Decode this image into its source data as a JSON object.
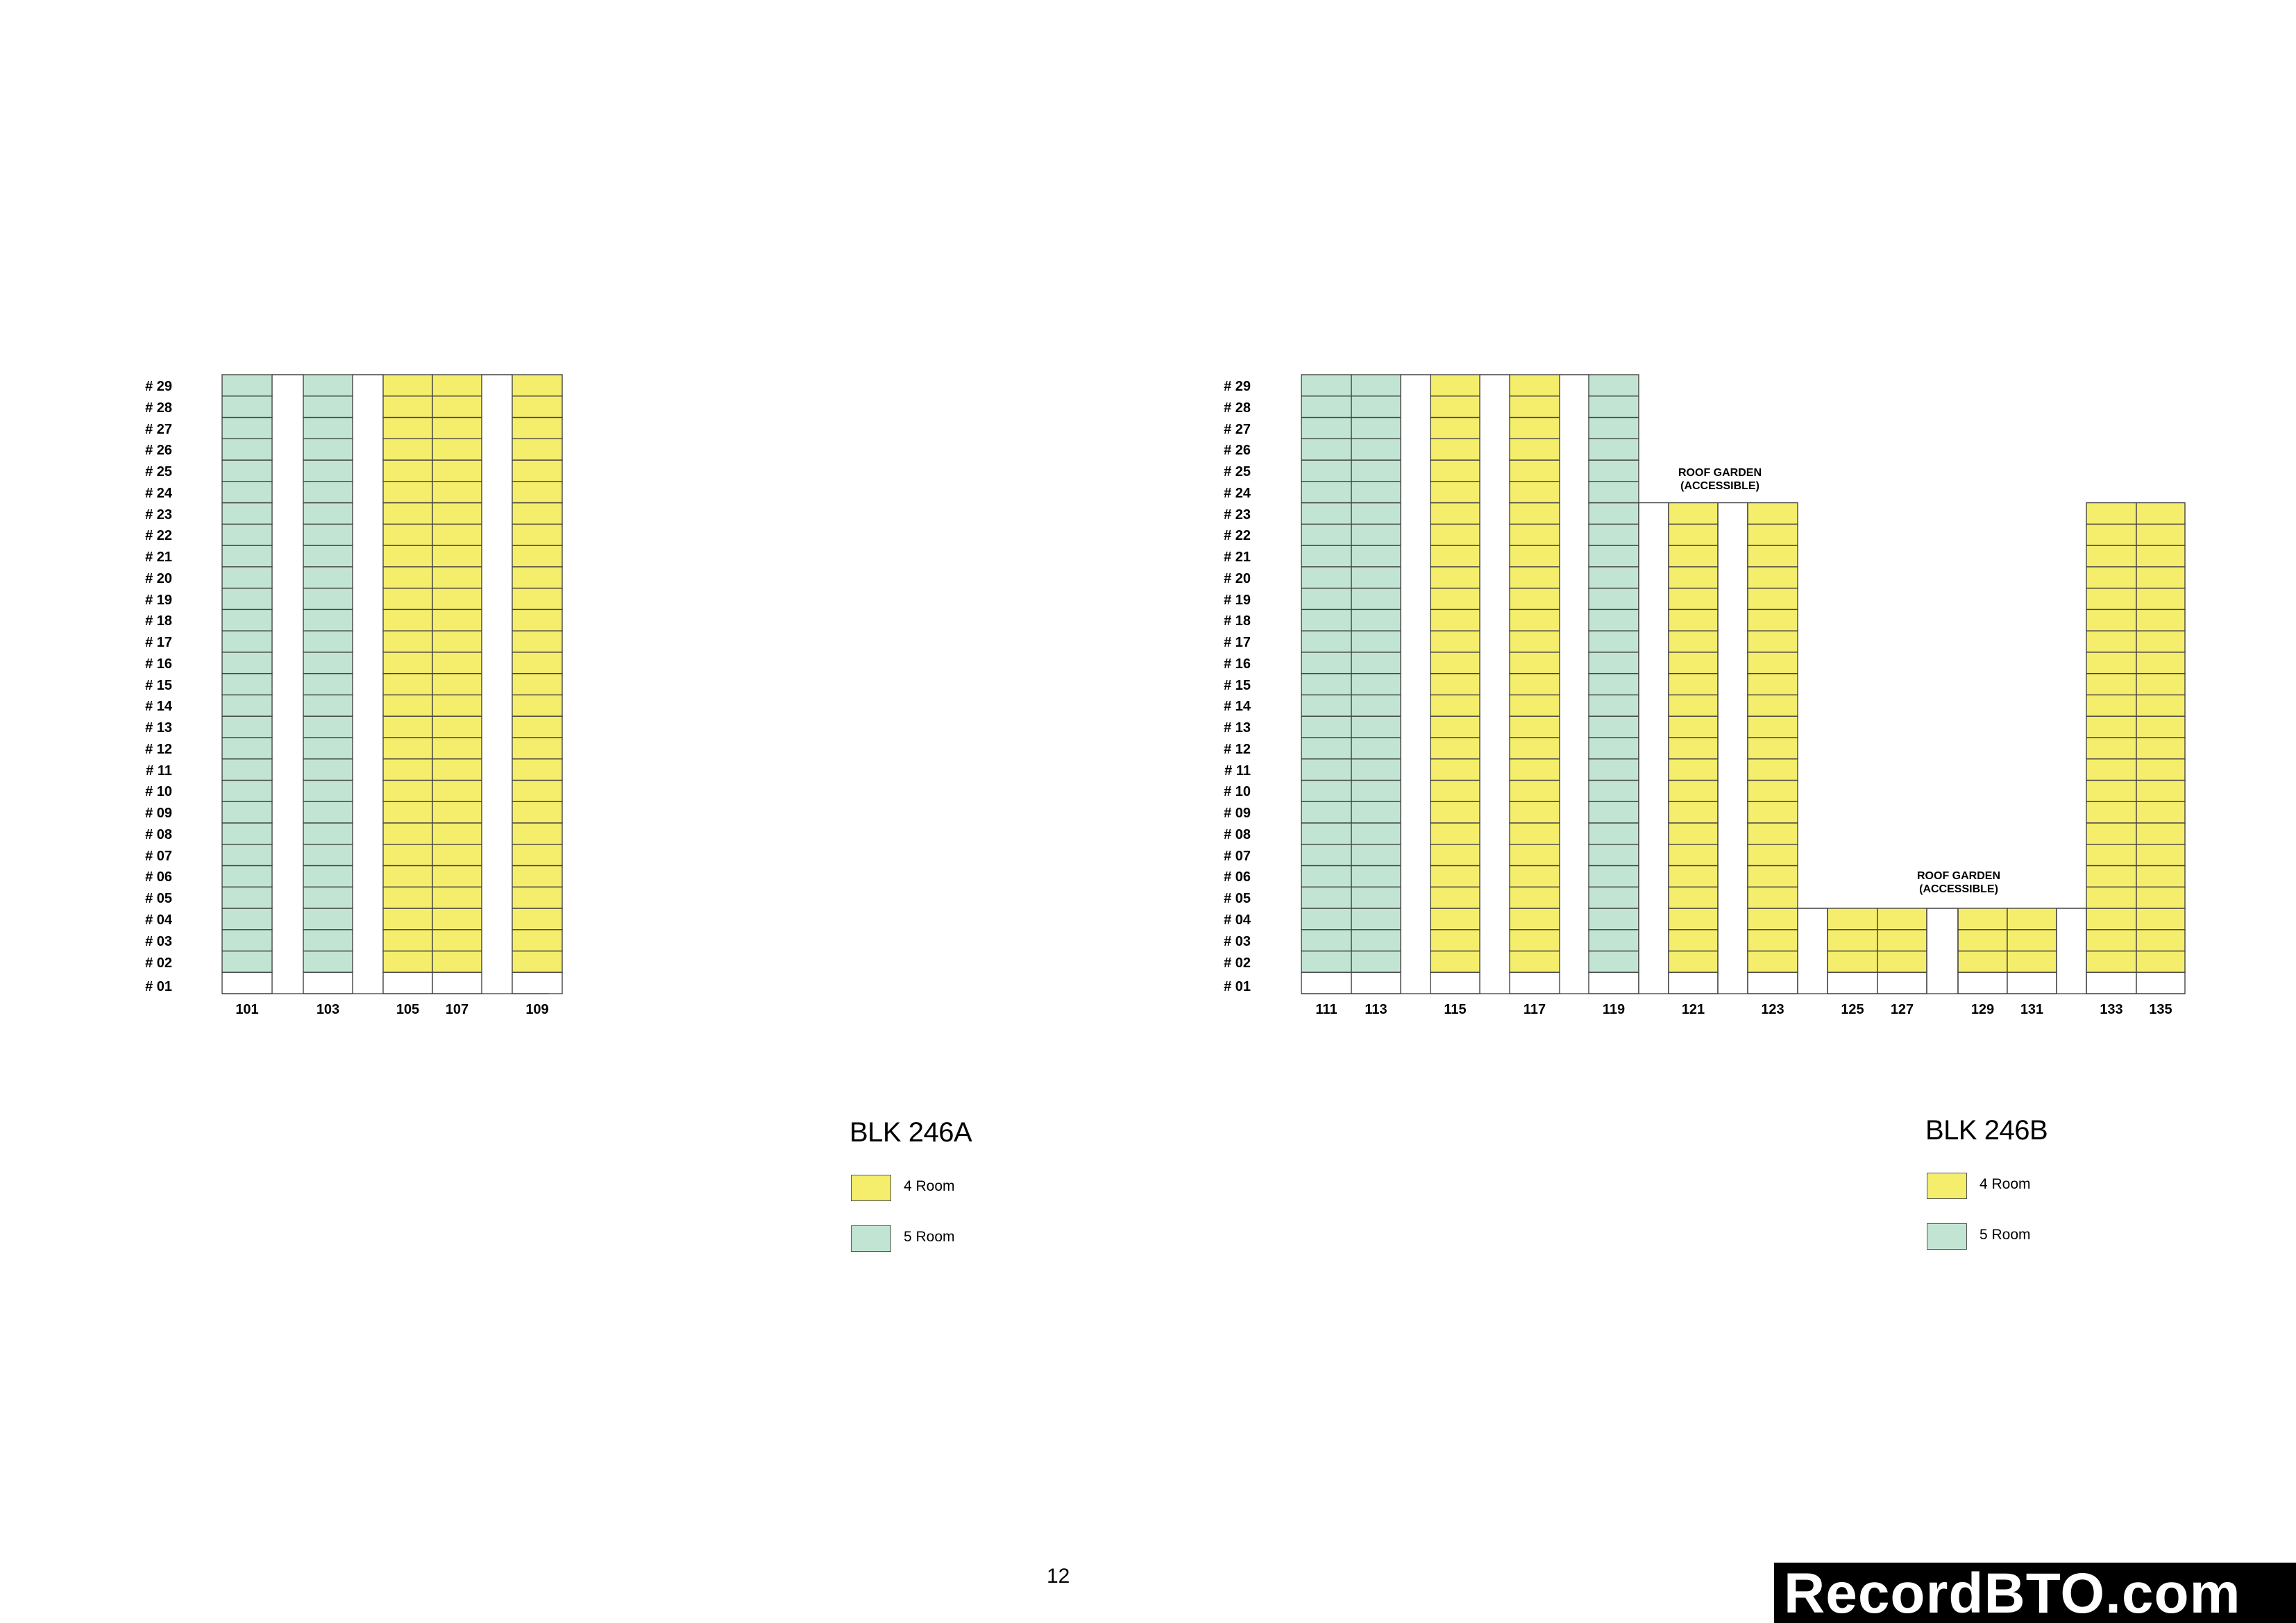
{
  "colors": {
    "four_room": "#f5ee6c",
    "five_room": "#c2e5d3",
    "grid": "#444444"
  },
  "floors": [
    "# 29",
    "# 28",
    "# 27",
    "# 26",
    "# 25",
    "# 24",
    "# 23",
    "# 22",
    "# 21",
    "# 20",
    "# 19",
    "# 18",
    "# 17",
    "# 16",
    "# 15",
    "# 14",
    "# 13",
    "# 12",
    "# 11",
    "# 10",
    "# 09",
    "# 08",
    "# 07",
    "# 06",
    "# 05",
    "# 04",
    "# 03",
    "# 02",
    "# 01"
  ],
  "blocks": [
    {
      "title": "BLK 246A",
      "legend": [
        {
          "label": "4 Room",
          "type": "four_room"
        },
        {
          "label": "5 Room",
          "type": "five_room"
        }
      ],
      "stacks": [
        {
          "unit": "101",
          "type": "five_room",
          "top_floor": 29
        },
        {
          "unit": "103",
          "type": "five_room",
          "top_floor": 29
        },
        {
          "unit": "105",
          "type": "four_room",
          "top_floor": 29
        },
        {
          "unit": "107",
          "type": "four_room",
          "top_floor": 29
        },
        {
          "unit": "109",
          "type": "four_room",
          "top_floor": 29
        }
      ]
    },
    {
      "title": "BLK 246B",
      "legend": [
        {
          "label": "4 Room",
          "type": "four_room"
        },
        {
          "label": "5 Room",
          "type": "five_room"
        }
      ],
      "stacks": [
        {
          "unit": "111",
          "type": "five_room",
          "top_floor": 29
        },
        {
          "unit": "113",
          "type": "five_room",
          "top_floor": 29
        },
        {
          "unit": "115",
          "type": "four_room",
          "top_floor": 29
        },
        {
          "unit": "117",
          "type": "four_room",
          "top_floor": 29
        },
        {
          "unit": "119",
          "type": "five_room",
          "top_floor": 29
        },
        {
          "unit": "121",
          "type": "four_room",
          "top_floor": 23
        },
        {
          "unit": "123",
          "type": "four_room",
          "top_floor": 23
        },
        {
          "unit": "125",
          "type": "four_room",
          "top_floor": 4
        },
        {
          "unit": "127",
          "type": "four_room",
          "top_floor": 4
        },
        {
          "unit": "129",
          "type": "four_room",
          "top_floor": 4
        },
        {
          "unit": "131",
          "type": "four_room",
          "top_floor": 4
        },
        {
          "unit": "133",
          "type": "four_room",
          "top_floor": 23
        },
        {
          "unit": "135",
          "type": "four_room",
          "top_floor": 23
        }
      ],
      "annotations": [
        {
          "line1": "ROOF GARDEN",
          "line2": "(ACCESSIBLE)"
        },
        {
          "line1": "ROOF GARDEN",
          "line2": "(ACCESSIBLE)"
        }
      ]
    }
  ],
  "page_number": "12",
  "watermark": "RecordBTO.com"
}
